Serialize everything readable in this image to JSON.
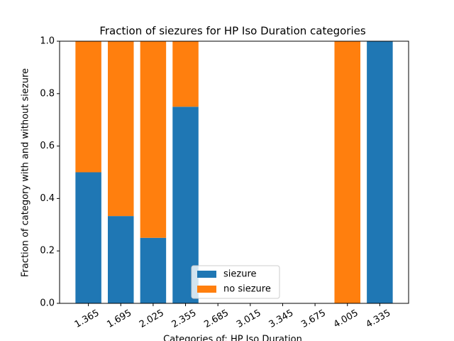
{
  "chart_data": {
    "type": "stacked_bar",
    "title": "Fraction of siezures for HP Iso Duration categories",
    "x_label": "Categories of: HP Iso Duration",
    "y_label": "Fraction of category with and without siezure",
    "categories": [
      "1.365",
      "1.695",
      "2.025",
      "2.355",
      "2.685",
      "3.015",
      "3.345",
      "3.675",
      "4.005",
      "4.335"
    ],
    "series": [
      {
        "name": "siezure",
        "color": "#1f77b4",
        "values": [
          0.5,
          0.333,
          0.25,
          0.75,
          0,
          0,
          0,
          0,
          0,
          1
        ]
      },
      {
        "name": "no siezure",
        "color": "#ff7f0e",
        "values": [
          0.5,
          0.667,
          0.75,
          0.25,
          0,
          0,
          0,
          0,
          1,
          0
        ]
      }
    ],
    "ylim": [
      0,
      1
    ],
    "yticks": [
      {
        "value": 0,
        "label": "0.0"
      },
      {
        "value": 0.2,
        "label": "0.2"
      },
      {
        "value": 0.4,
        "label": "0.4"
      },
      {
        "value": 0.6,
        "label": "0.6"
      },
      {
        "value": 0.8,
        "label": "0.8"
      },
      {
        "value": 1,
        "label": "1.0"
      }
    ],
    "legend": "lower center"
  }
}
